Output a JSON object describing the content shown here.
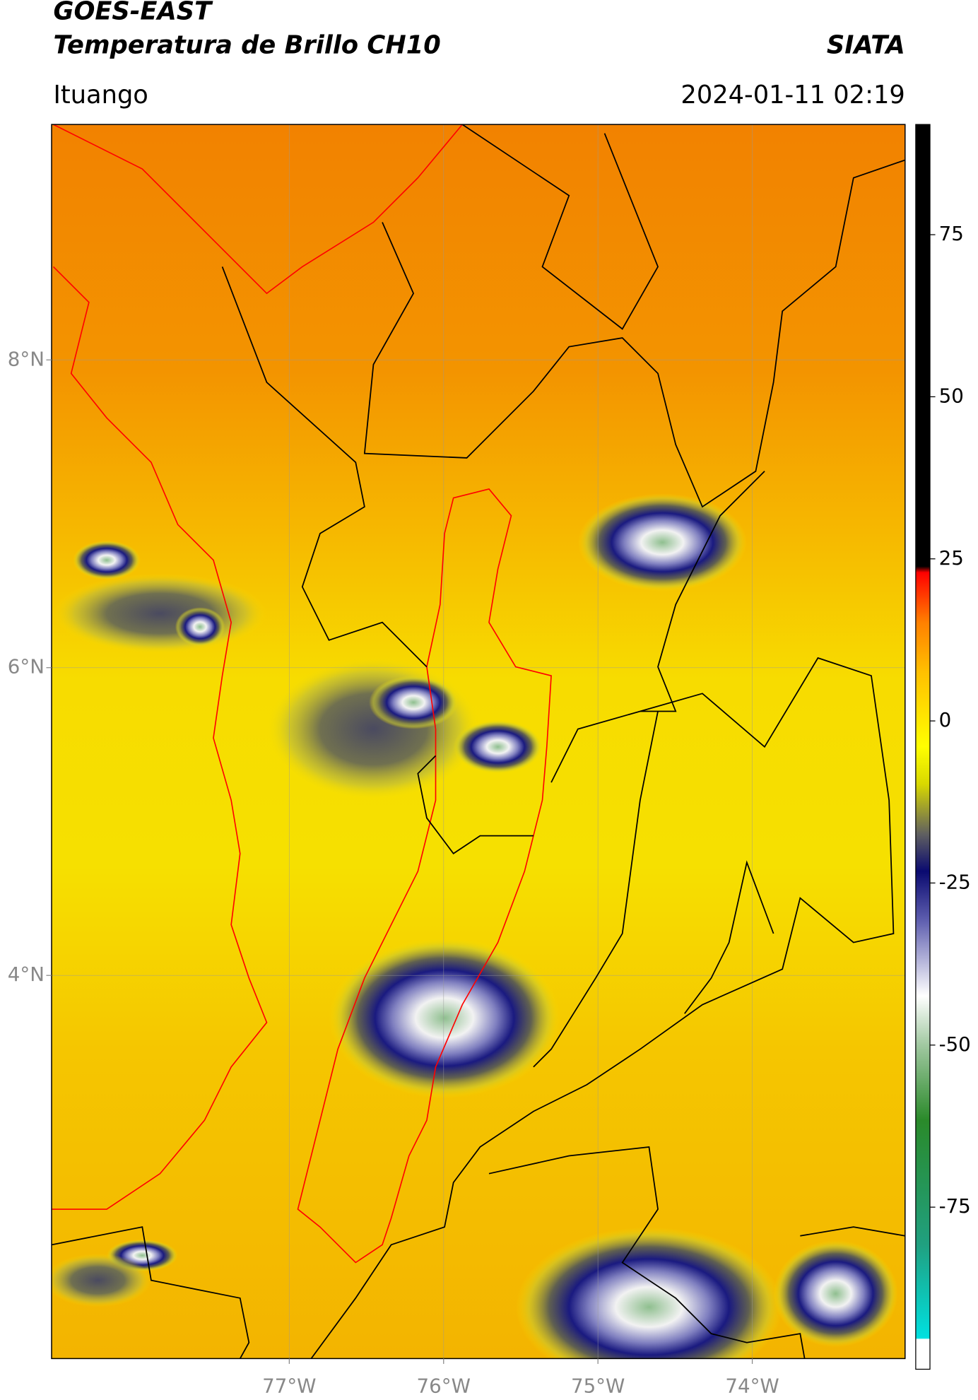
{
  "chart_data": {
    "type": "map",
    "title": "GOES-EAST",
    "subtitle": "Temperatura de Brillo CH10",
    "source": "SIATA",
    "location": "Ituango",
    "datetime": "2024-01-11 02:19",
    "xlim": [
      -78.54,
      -73.01
    ],
    "xticks": [
      {
        "value": -77,
        "label": "77°W"
      },
      {
        "value": -76,
        "label": "76°W"
      },
      {
        "value": -75,
        "label": "75°W"
      },
      {
        "value": -74,
        "label": "74°W"
      }
    ],
    "ylim": [
      1.51,
      9.53
    ],
    "yticks": [
      {
        "value": 8,
        "label": "8°N"
      },
      {
        "value": 6,
        "label": "6°N"
      },
      {
        "value": 4,
        "label": "4°N"
      }
    ],
    "grid": true,
    "colorbar": {
      "ylim": [
        -100,
        92
      ],
      "yticks": [
        75,
        50,
        25,
        0,
        -25,
        -50,
        -75
      ]
    }
  }
}
